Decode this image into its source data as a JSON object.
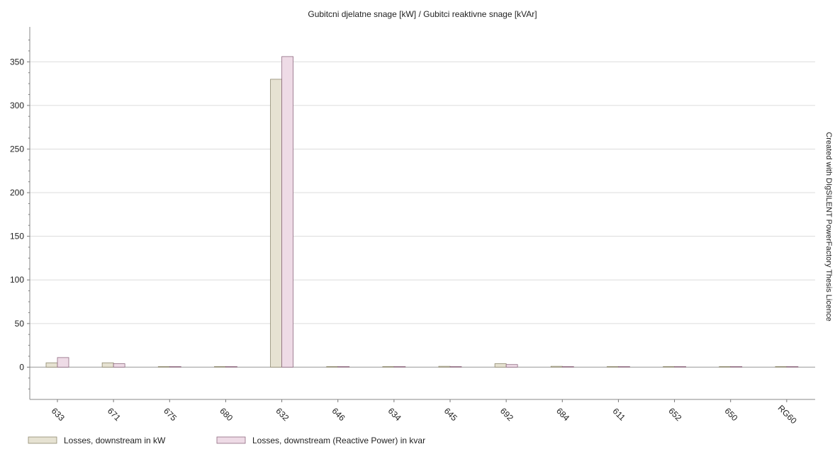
{
  "chart_data": {
    "type": "bar",
    "title": "Gubitcni djelatne snage [kW] / Gubitci reaktivne snage [kVAr]",
    "side_note": "Created with DIgSILENT PowerFactory Thesis Licence",
    "categories": [
      "633",
      "671",
      "675",
      "680",
      "632",
      "646",
      "634",
      "645",
      "692",
      "684",
      "611",
      "652",
      "650",
      "RG60"
    ],
    "series": [
      {
        "name": "Losses, downstream in kW",
        "values": [
          5.0,
          5.0,
          0.0,
          0.0,
          330.0,
          0.0,
          0.0,
          1.0,
          4.0,
          1.0,
          0.0,
          0.0,
          0.0,
          0.0
        ],
        "fill": "#e6e2d2",
        "stroke": "#8f8a6f"
      },
      {
        "name": "Losses, downstream (Reactive Power) in kvar",
        "values": [
          11.0,
          4.0,
          0.0,
          0.0,
          356.0,
          0.0,
          0.0,
          0.5,
          3.0,
          0.5,
          0.0,
          0.0,
          0.0,
          0.0
        ],
        "fill": "#eedbe6",
        "stroke": "#8f6a80"
      }
    ],
    "yticks": [
      0,
      50,
      100,
      150,
      200,
      250,
      300,
      350
    ],
    "ylim": [
      -37,
      390
    ],
    "grid": true,
    "legend_position": "bottom-left"
  }
}
